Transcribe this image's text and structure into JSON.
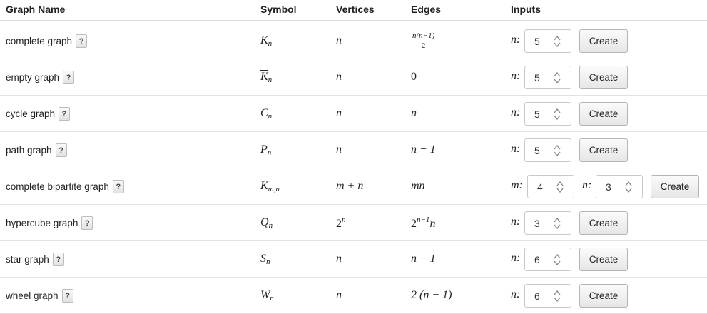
{
  "header": {
    "graph_name": "Graph Name",
    "symbol": "Symbol",
    "vertices": "Vertices",
    "edges": "Edges",
    "inputs": "Inputs"
  },
  "help_label": "?",
  "create_label": "Create",
  "rows": [
    {
      "name": "complete graph",
      "inputs": [
        {
          "label": "n:",
          "value": "5"
        }
      ]
    },
    {
      "name": "empty graph",
      "inputs": [
        {
          "label": "n:",
          "value": "5"
        }
      ]
    },
    {
      "name": "cycle graph",
      "inputs": [
        {
          "label": "n:",
          "value": "5"
        }
      ]
    },
    {
      "name": "path graph",
      "inputs": [
        {
          "label": "n:",
          "value": "5"
        }
      ]
    },
    {
      "name": "complete bipartite graph",
      "inputs": [
        {
          "label": "m:",
          "value": "4"
        },
        {
          "label": "n:",
          "value": "3"
        }
      ]
    },
    {
      "name": "hypercube graph",
      "inputs": [
        {
          "label": "n:",
          "value": "3"
        }
      ]
    },
    {
      "name": "star graph",
      "inputs": [
        {
          "label": "n:",
          "value": "6"
        }
      ]
    },
    {
      "name": "wheel graph",
      "inputs": [
        {
          "label": "n:",
          "value": "6"
        }
      ]
    }
  ],
  "math": {
    "K": "K",
    "n": "n",
    "C": "C",
    "P": "P",
    "Q": "Q",
    "S": "S",
    "W": "W",
    "mn_sub": "m,n",
    "m_plus_n": "m + n",
    "two": "2",
    "zero": "0",
    "frac_num": "n(n−1)",
    "frac_den": "2",
    "n_minus_1": "n − 1",
    "mn": "mn",
    "exp": "n−1",
    "two_paren": "2 (n − 1)"
  }
}
